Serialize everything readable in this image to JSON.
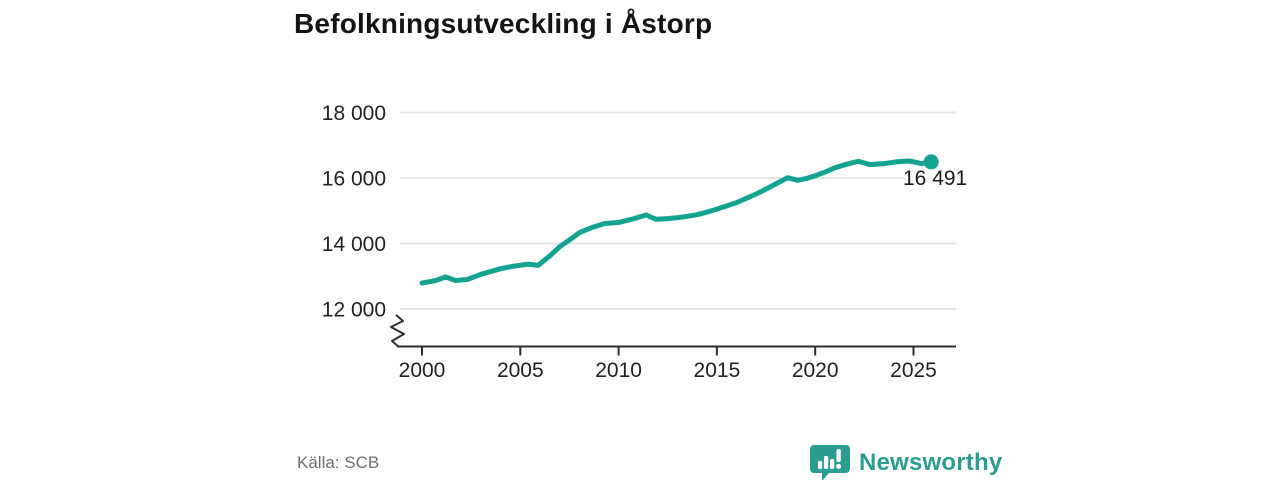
{
  "title": "Befolkningsutveckling i Åstorp",
  "source": {
    "label": "Källa: SCB"
  },
  "branding": {
    "wordmark": "Newsworthy",
    "logo_color": "#2b9c90",
    "icon": "newsworthy-chart-bubble-icon"
  },
  "colors": {
    "line": "#14a390",
    "grid": "#e4e4e4",
    "axis": "#2e2e2e",
    "title": "#141414",
    "source_text": "#6d6d75"
  },
  "chart_data": {
    "type": "line",
    "title": "Befolkningsutveckling i Åstorp",
    "xlabel": "",
    "ylabel": "",
    "grid": true,
    "axis_break": true,
    "xlim": [
      1998.8,
      2027.2
    ],
    "ylim_shown": [
      12000,
      18000
    ],
    "xticks": [
      2000,
      2005,
      2010,
      2015,
      2020,
      2025
    ],
    "yticks": [
      {
        "value": 12000,
        "label": "12 000"
      },
      {
        "value": 14000,
        "label": "14 000"
      },
      {
        "value": 16000,
        "label": "16 000"
      },
      {
        "value": 18000,
        "label": "18 000"
      }
    ],
    "series": [
      {
        "name": "Befolkning i Åstorp",
        "x": [
          2000,
          2000.7,
          2001.2,
          2001.7,
          2002.3,
          2003,
          2004,
          2004.6,
          2005.4,
          2005.9,
          2006.5,
          2007,
          2007.6,
          2008,
          2008.7,
          2009.3,
          2010,
          2010.8,
          2011.4,
          2011.9,
          2012.5,
          2013,
          2013.5,
          2014,
          2014.5,
          2015,
          2016,
          2017,
          2017.5,
          2018,
          2018.6,
          2019.1,
          2019.6,
          2020,
          2020.5,
          2021,
          2021.6,
          2022.2,
          2022.8,
          2023.5,
          2024.2,
          2024.8,
          2025.4,
          2025.9
        ],
        "y": [
          12790,
          12870,
          12980,
          12870,
          12900,
          13060,
          13230,
          13300,
          13370,
          13330,
          13620,
          13900,
          14150,
          14330,
          14500,
          14610,
          14640,
          14760,
          14870,
          14740,
          14760,
          14790,
          14830,
          14880,
          14960,
          15050,
          15250,
          15510,
          15660,
          15820,
          16010,
          15930,
          15990,
          16070,
          16180,
          16310,
          16420,
          16510,
          16410,
          16440,
          16500,
          16520,
          16440,
          16491
        ]
      }
    ],
    "end_point": {
      "x": 2025.9,
      "value": 16491
    },
    "end_label": "16 491"
  }
}
